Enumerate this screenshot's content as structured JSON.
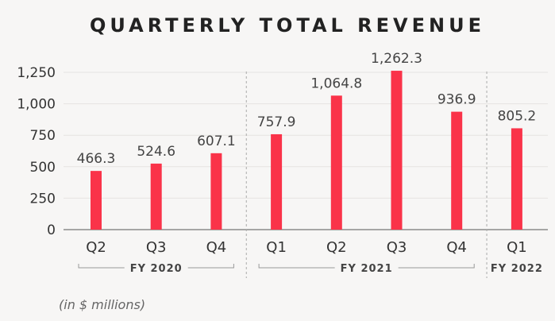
{
  "chart_data": {
    "type": "bar",
    "title": "QUARTERLY TOTAL REVENUE",
    "categories": [
      "Q2",
      "Q3",
      "Q4",
      "Q1",
      "Q2",
      "Q3",
      "Q4",
      "Q1"
    ],
    "values": [
      466.3,
      524.6,
      607.1,
      757.9,
      1064.8,
      1262.3,
      936.9,
      805.2
    ],
    "value_labels": [
      "466.3",
      "524.6",
      "607.1",
      "757.9",
      "1,064.8",
      "1,262.3",
      "936.9",
      "805.2"
    ],
    "fiscal_years": [
      {
        "label": "FY 2020",
        "start": 0,
        "end": 2
      },
      {
        "label": "FY 2021",
        "start": 3,
        "end": 6
      },
      {
        "label": "FY 2022",
        "start": 7,
        "end": 7
      }
    ],
    "yticks": [
      0,
      250,
      500,
      750,
      1000,
      1250
    ],
    "ytick_labels": [
      "0",
      "250",
      "500",
      "750",
      "1,000",
      "1,250"
    ],
    "ylim": [
      0,
      1300
    ],
    "grid": true,
    "note": "(in $ millions)",
    "colors": {
      "bar": "#fa3349"
    }
  }
}
